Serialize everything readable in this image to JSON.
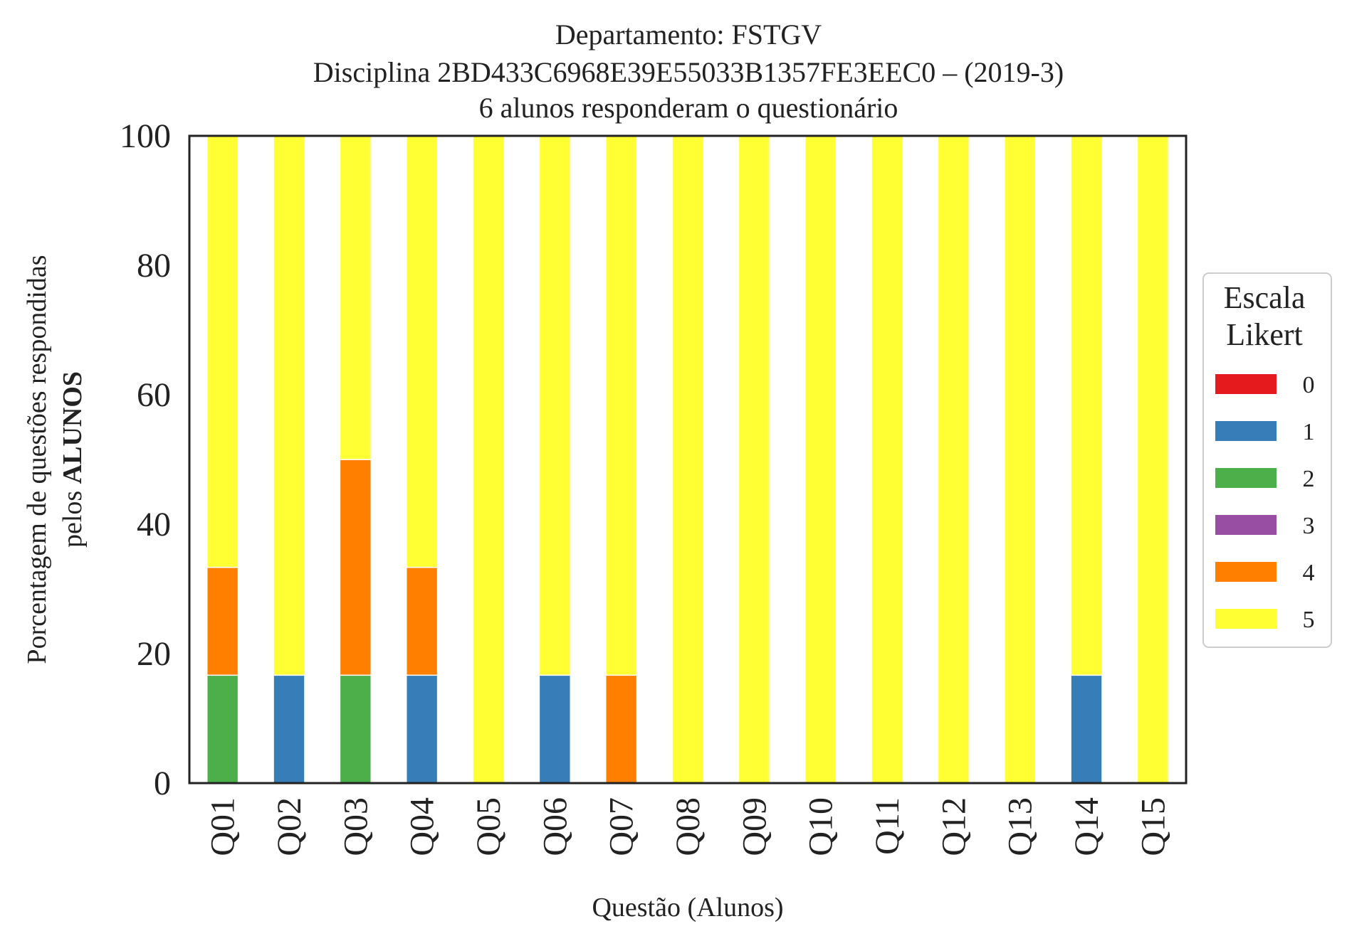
{
  "chart_data": {
    "type": "bar",
    "stacked": true,
    "title_lines": [
      "Departamento: FSTGV",
      "Disciplina 2BD433C6968E39E55033B1357FE3EEC0 – (2019-3)",
      "6 alunos responderam o questionário"
    ],
    "xlabel": "Questão (Alunos)",
    "ylabel_line1": "Porcentagem de questões respondidas",
    "ylabel_line2_prefix": "pelos ",
    "ylabel_line2_bold": "ALUNOS",
    "ylim": [
      0,
      100
    ],
    "yticks": [
      "0",
      "20",
      "40",
      "60",
      "80",
      "100"
    ],
    "grid": false,
    "legend": {
      "title_line1": "Escala",
      "title_line2": "Likert",
      "placement": "right"
    },
    "categories": [
      "Q01",
      "Q02",
      "Q03",
      "Q04",
      "Q05",
      "Q06",
      "Q07",
      "Q08",
      "Q09",
      "Q10",
      "Q11",
      "Q12",
      "Q13",
      "Q14",
      "Q15"
    ],
    "series": [
      {
        "name": "0",
        "color": "#e41a1c",
        "values": [
          0,
          0,
          0,
          0,
          0,
          0,
          0,
          0,
          0,
          0,
          0,
          0,
          0,
          0,
          0
        ]
      },
      {
        "name": "1",
        "color": "#377eb8",
        "values": [
          0,
          16.67,
          0,
          16.67,
          0,
          16.67,
          0,
          0,
          0,
          0,
          0,
          0,
          0,
          16.67,
          0
        ]
      },
      {
        "name": "2",
        "color": "#4daf4a",
        "values": [
          16.67,
          0,
          16.67,
          0,
          0,
          0,
          0,
          0,
          0,
          0,
          0,
          0,
          0,
          0,
          0
        ]
      },
      {
        "name": "3",
        "color": "#984ea3",
        "values": [
          0,
          0,
          0,
          0,
          0,
          0,
          0,
          0,
          0,
          0,
          0,
          0,
          0,
          0,
          0
        ]
      },
      {
        "name": "4",
        "color": "#ff7f00",
        "values": [
          16.67,
          0,
          33.33,
          16.67,
          0,
          0,
          16.67,
          0,
          0,
          0,
          0,
          0,
          0,
          0,
          0
        ]
      },
      {
        "name": "5",
        "color": "#ffff33",
        "values": [
          66.67,
          83.33,
          50,
          66.67,
          100,
          83.33,
          83.33,
          100,
          100,
          100,
          100,
          100,
          100,
          83.33,
          100
        ]
      }
    ]
  }
}
